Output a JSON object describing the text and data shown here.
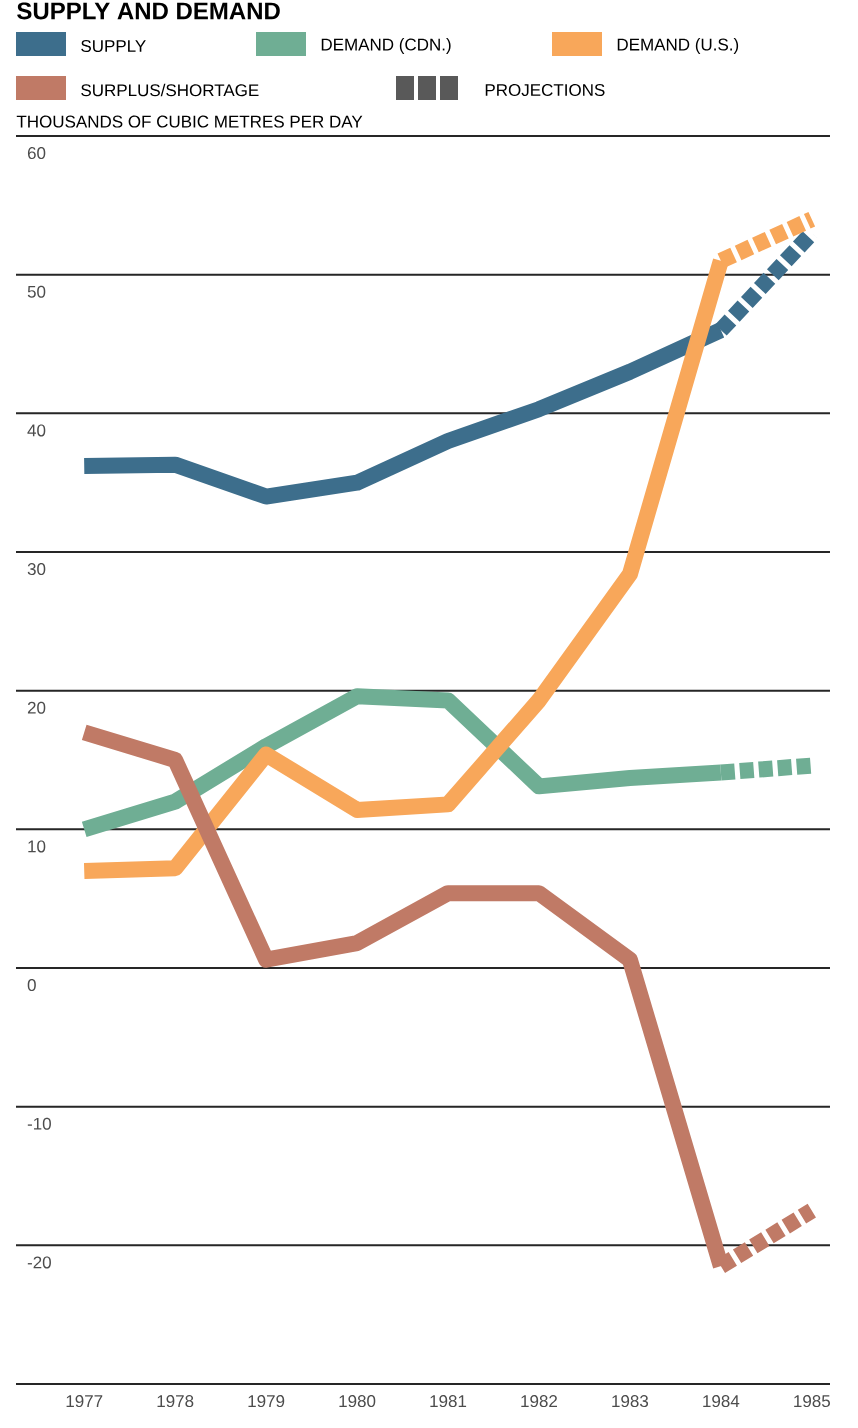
{
  "chart_data": {
    "type": "line",
    "title": "SUPPLY AND DEMAND",
    "ylabel": "THOUSANDS OF CUBIC METRES PER DAY",
    "xlim": [
      1976.25,
      1985.2
    ],
    "xticks": [
      1977,
      1978,
      1979,
      1980,
      1981,
      1982,
      1983,
      1984,
      1985
    ],
    "ylim": [
      -30,
      60
    ],
    "yticks": [
      {
        "value": -30,
        "label": null
      },
      -20,
      -10,
      0,
      10,
      20,
      30,
      40,
      50,
      60
    ],
    "grid": "y",
    "legend": "top",
    "line_style": "solid",
    "annotations": [
      "PROJECTIONS"
    ],
    "series": [
      {
        "name": "SUPPLY",
        "color": "#3d6e8c",
        "x": [
          1977,
          1978,
          1979,
          1980,
          1981,
          1982,
          1983,
          1984
        ],
        "values": [
          36.2,
          36.3,
          34,
          35,
          38,
          40.3,
          43,
          46
        ]
      },
      {
        "name": "DEMAND (CDN.)",
        "color": "#6fae94",
        "x": [
          1977,
          1978,
          1979,
          1980,
          1981,
          1982,
          1983,
          1984
        ],
        "values": [
          10,
          12,
          16,
          19.6,
          19.3,
          13.1,
          13.7,
          14.1
        ]
      },
      {
        "name": "DEMAND (U.S.)",
        "color": "#f8a75a",
        "x": [
          1977,
          1978,
          1979,
          1980,
          1981,
          1982,
          1983,
          1984
        ],
        "values": [
          7,
          7.2,
          15.4,
          11.4,
          11.8,
          19.3,
          28.4,
          51
        ]
      },
      {
        "name": "SURPLUS/SHORTAGE",
        "color": "#c07a66",
        "x": [
          1977,
          1978,
          1979,
          1980,
          1981,
          1982,
          1983,
          1984
        ],
        "values": [
          17,
          15,
          0.6,
          1.8,
          5.4,
          5.4,
          0.6,
          -21.5
        ]
      },
      {
        "color": "#3d6e8c",
        "line_style": "dashed",
        "x": [
          1984,
          1985
        ],
        "values": [
          46,
          53
        ]
      },
      {
        "color": "#6fae94",
        "line_style": "dashed",
        "x": [
          1984,
          1985
        ],
        "values": [
          14.1,
          14.6
        ]
      },
      {
        "color": "#f8a75a",
        "line_style": "dashed",
        "x": [
          1984,
          1985
        ],
        "values": [
          51,
          54
        ]
      },
      {
        "color": "#c07a66",
        "line_style": "dashed",
        "x": [
          1984,
          1985
        ],
        "values": [
          -21.5,
          -17.5
        ]
      }
    ]
  }
}
